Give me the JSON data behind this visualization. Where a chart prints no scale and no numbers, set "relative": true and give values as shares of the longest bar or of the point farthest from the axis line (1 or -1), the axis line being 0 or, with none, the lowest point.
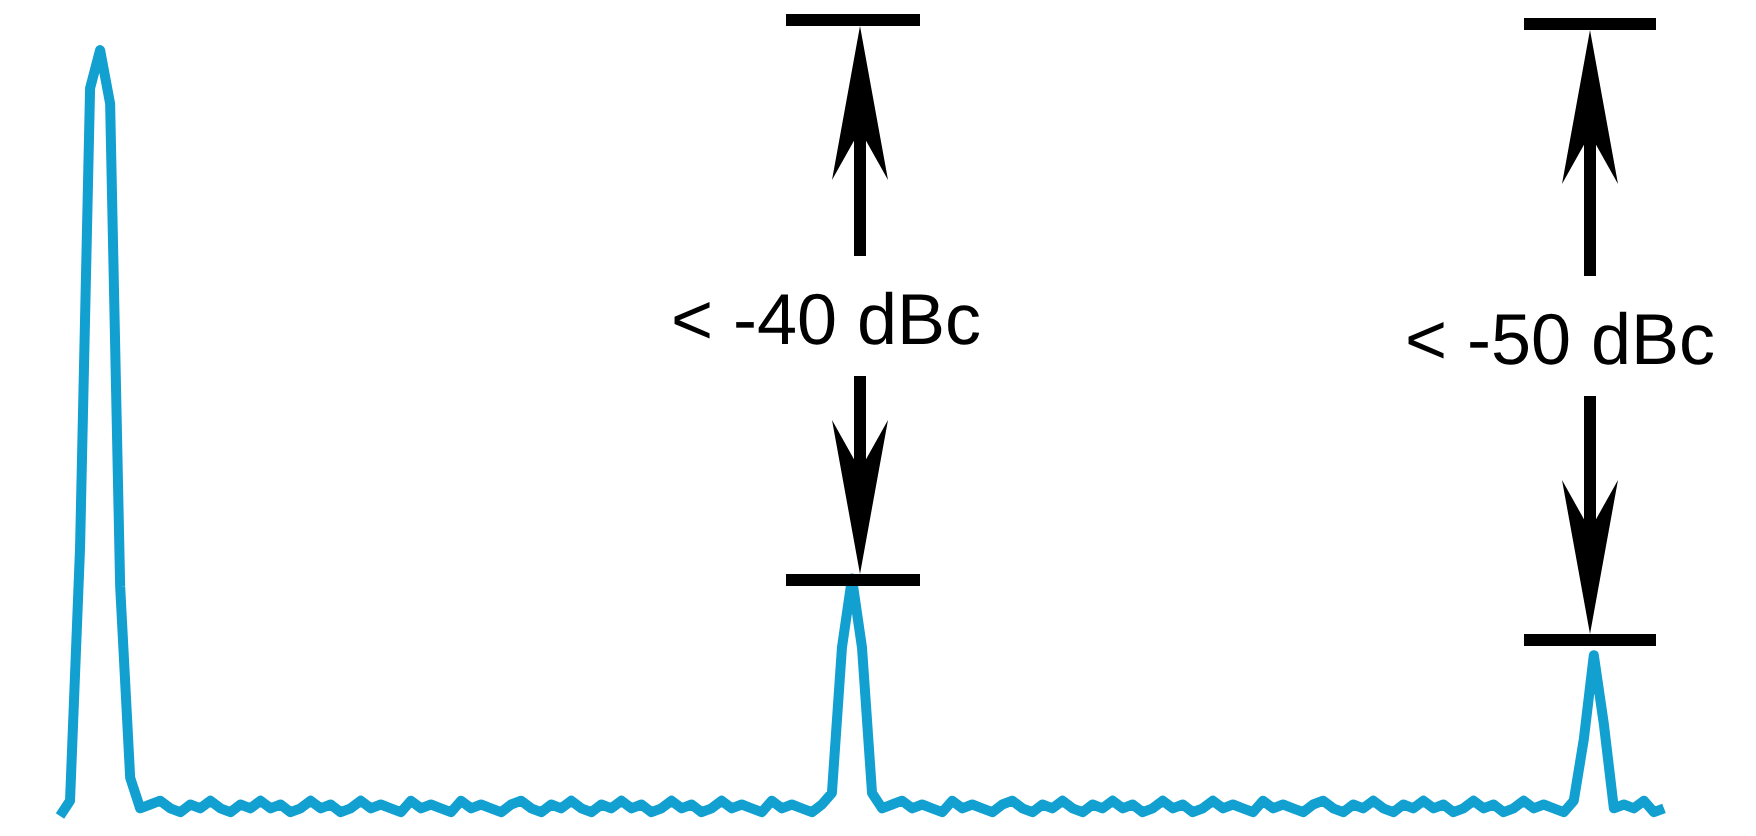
{
  "chart_data": {
    "type": "line",
    "relative": true,
    "color": "#12a0d0",
    "categories": [
      null,
      null,
      null,
      null,
      null,
      null,
      null,
      null,
      null,
      null,
      null,
      null,
      null,
      null,
      null,
      null,
      null,
      null,
      null,
      null,
      null,
      null,
      null,
      null,
      null,
      null,
      null,
      null,
      null,
      null,
      null,
      null,
      null,
      null,
      null,
      null,
      null,
      null,
      null,
      null,
      null,
      null,
      null,
      null,
      null,
      null,
      null,
      null,
      null,
      null,
      null,
      null,
      null,
      null,
      null,
      null,
      null,
      null,
      null,
      null,
      null,
      null,
      null,
      null,
      null,
      null,
      null,
      null,
      null,
      null,
      null,
      null,
      null,
      null,
      null,
      null,
      null,
      null,
      null,
      null,
      null,
      null,
      null,
      null,
      null,
      null,
      null,
      null,
      null,
      null,
      null,
      null,
      null,
      null,
      null,
      null,
      null,
      null,
      null,
      null,
      null,
      null,
      null,
      null,
      null,
      null,
      null,
      null,
      null,
      null,
      null,
      null,
      null,
      null,
      null,
      null,
      null,
      null,
      null,
      null,
      null,
      null,
      null,
      null,
      null,
      null,
      null,
      null,
      null,
      null,
      null,
      null,
      null,
      null,
      null,
      null,
      null,
      null,
      null,
      null,
      null,
      null,
      null,
      null,
      null,
      null,
      null,
      null,
      null,
      null,
      null,
      null,
      null,
      null,
      null,
      null,
      null,
      null,
      null,
      null,
      null
    ],
    "values": [
      0,
      0.02,
      0.35,
      0.95,
      1,
      0.93,
      0.3,
      0.05,
      0.01,
      0.015,
      0.02,
      0.01,
      0.005,
      0.015,
      0.01,
      0.02,
      0.01,
      0.005,
      0.015,
      0.01,
      0.02,
      0.01,
      0.015,
      0.005,
      0.01,
      0.02,
      0.01,
      0.015,
      0.005,
      0.01,
      0.02,
      0.01,
      0.015,
      0.01,
      0.005,
      0.02,
      0.01,
      0.015,
      0.01,
      0.005,
      0.02,
      0.01,
      0.015,
      0.01,
      0.005,
      0.015,
      0.02,
      0.01,
      0.005,
      0.015,
      0.01,
      0.02,
      0.01,
      0.005,
      0.015,
      0.01,
      0.02,
      0.01,
      0.015,
      0.005,
      0.01,
      0.02,
      0.01,
      0.015,
      0.005,
      0.01,
      0.02,
      0.01,
      0.015,
      0.01,
      0.005,
      0.02,
      0.01,
      0.015,
      0.01,
      0.005,
      0.015,
      0.03,
      0.22,
      0.31,
      0.22,
      0.03,
      0.01,
      0.015,
      0.02,
      0.01,
      0.015,
      0.01,
      0.005,
      0.02,
      0.01,
      0.015,
      0.01,
      0.005,
      0.015,
      0.02,
      0.01,
      0.005,
      0.015,
      0.01,
      0.02,
      0.01,
      0.005,
      0.015,
      0.01,
      0.02,
      0.01,
      0.015,
      0.005,
      0.01,
      0.02,
      0.01,
      0.015,
      0.005,
      0.01,
      0.02,
      0.01,
      0.015,
      0.01,
      0.005,
      0.02,
      0.01,
      0.015,
      0.01,
      0.005,
      0.015,
      0.02,
      0.01,
      0.005,
      0.015,
      0.01,
      0.02,
      0.01,
      0.005,
      0.015,
      0.01,
      0.02,
      0.01,
      0.015,
      0.005,
      0.01,
      0.02,
      0.01,
      0.015,
      0.005,
      0.01,
      0.02,
      0.01,
      0.015,
      0.01,
      0.005,
      0.02,
      0.1,
      0.21,
      0.12,
      0.01,
      0.015,
      0.01,
      0.02,
      0.005,
      0.01
    ],
    "annotations": [
      "< -40 dBc",
      "< -50 dBc"
    ]
  }
}
